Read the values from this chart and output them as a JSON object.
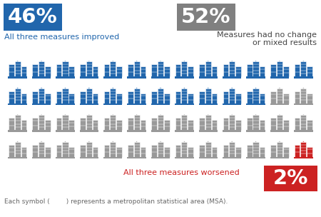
{
  "total_cities": 52,
  "blue_count": 24,
  "gray_count": 27,
  "red_count": 1,
  "cols": 13,
  "rows": 4,
  "pct_blue": "46%",
  "pct_gray": "52%",
  "pct_red": "2%",
  "label_blue": "All three measures improved",
  "label_gray_line1": "Measures had no change",
  "label_gray_line2": "or mixed results",
  "label_red": "All three measures worsened",
  "footer": "Each symbol (        ) represents a metropolitan statistical area (MSA).",
  "color_blue": "#2166ac",
  "color_blue_box": "#2166ac",
  "color_gray": "#999999",
  "color_gray_box": "#808080",
  "color_red": "#cc2222",
  "color_red_box": "#cc2222",
  "color_bg": "#ffffff",
  "fig_width": 4.5,
  "fig_height": 3.04,
  "dpi": 100
}
